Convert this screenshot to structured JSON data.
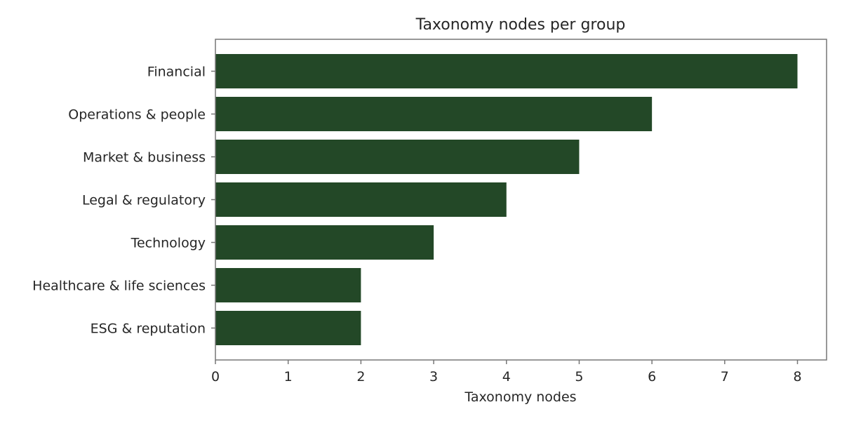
{
  "chart_data": {
    "type": "bar",
    "orientation": "horizontal",
    "title": "Taxonomy nodes per group",
    "xlabel": "Taxonomy nodes",
    "ylabel": "",
    "categories": [
      "Financial",
      "Operations & people",
      "Market & business",
      "Legal & regulatory",
      "Technology",
      "Healthcare & life sciences",
      "ESG & reputation"
    ],
    "values": [
      8,
      6,
      5,
      4,
      3,
      2,
      2
    ],
    "xlim": [
      0,
      8.4
    ],
    "xticks": [
      0,
      1,
      2,
      3,
      4,
      5,
      6,
      7,
      8
    ],
    "grid": false,
    "legend": "none",
    "bar_color": "#234827"
  }
}
